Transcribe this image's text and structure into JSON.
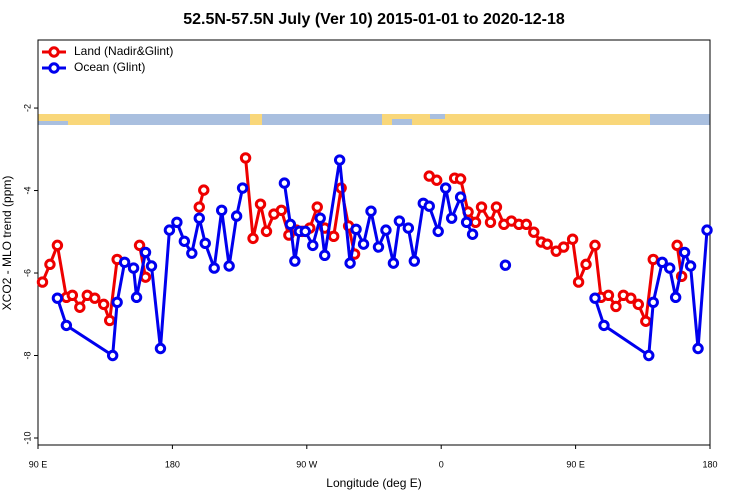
{
  "chart_data": {
    "type": "line",
    "title": "52.5N-57.5N July (Ver 10)   2015-01-01 to 2020-12-18",
    "x_label": "Longitude (deg E)",
    "y_label": "XCO2 - MLO trend (ppm)",
    "xlim": [
      90,
      540
    ],
    "ylim": [
      -10.17,
      -0.35
    ],
    "xticks": [
      {
        "value": 90,
        "label": "90 E"
      },
      {
        "value": 180,
        "label": "180"
      },
      {
        "value": 270,
        "label": "90 W"
      },
      {
        "value": 360,
        "label": "0"
      },
      {
        "value": 450,
        "label": "90 E"
      },
      {
        "value": 540,
        "label": "180"
      }
    ],
    "yticks": [
      -2,
      -4,
      -6,
      -8,
      -10
    ],
    "legend": "top-left",
    "series": [
      {
        "name": "Land (Nadir&Glint)",
        "color": "#ee0000",
        "x": [
          93,
          98,
          103,
          109,
          113,
          118,
          123,
          128,
          134,
          138,
          143,
          null,
          158,
          162,
          null,
          198,
          201,
          null,
          229,
          234,
          239,
          243,
          248,
          253,
          258,
          263,
          267,
          272,
          277,
          282,
          288,
          293,
          298,
          302,
          null,
          352,
          357,
          null,
          369,
          373,
          378,
          383,
          387,
          393,
          397,
          402,
          407,
          412,
          417,
          422,
          427,
          431,
          437,
          442,
          448,
          452,
          457,
          463,
          467,
          472,
          477,
          482,
          487,
          492,
          497,
          502,
          null,
          518,
          521
        ],
        "values": [
          -6.22,
          -5.79,
          -5.33,
          -6.59,
          -6.54,
          -6.83,
          -6.54,
          -6.61,
          -6.76,
          -7.15,
          -5.67,
          null,
          -5.33,
          -6.1,
          null,
          -4.4,
          -3.99,
          null,
          -3.21,
          -5.16,
          -4.33,
          -4.99,
          -4.57,
          -4.48,
          -5.08,
          -4.96,
          -4.99,
          -4.91,
          -4.4,
          -4.91,
          -5.11,
          -3.94,
          -4.86,
          -5.54,
          null,
          -3.65,
          -3.75,
          null,
          -3.7,
          -3.72,
          -4.52,
          -4.77,
          -4.4,
          -4.77,
          -4.4,
          -4.82,
          -4.74,
          -4.82,
          -4.82,
          -5.01,
          -5.25,
          -5.3,
          -5.47,
          -5.37,
          -5.18,
          -6.22,
          -5.79,
          -5.33,
          -6.59,
          -6.54,
          -6.81,
          -6.54,
          -6.61,
          -6.76,
          -7.17,
          -5.67,
          null,
          -5.33,
          -6.08
        ]
      },
      {
        "name": "Ocean (Glint)",
        "color": "#0000ee",
        "x": [
          103,
          109,
          140,
          143,
          148,
          154,
          156,
          162,
          166,
          172,
          178,
          183,
          188,
          193,
          198,
          202,
          208,
          213,
          218,
          223,
          227,
          null,
          255,
          259,
          262,
          265,
          269,
          274,
          279,
          282,
          292,
          299,
          303,
          308,
          313,
          318,
          323,
          328,
          332,
          338,
          342,
          348,
          352,
          358,
          363,
          367,
          373,
          377,
          381,
          null,
          403,
          null,
          463,
          469,
          499,
          502,
          508,
          513,
          517,
          523,
          527,
          532,
          538
        ],
        "values": [
          -6.61,
          -7.27,
          -8.0,
          -6.71,
          -5.74,
          -5.88,
          -6.59,
          -5.5,
          -5.83,
          -7.83,
          -4.96,
          -4.77,
          -5.23,
          -5.52,
          -4.67,
          -5.28,
          -5.88,
          -4.48,
          -5.83,
          -4.62,
          -3.94,
          null,
          -3.82,
          -4.82,
          -5.71,
          -4.99,
          -4.99,
          -5.33,
          -4.67,
          -5.57,
          -3.26,
          -5.76,
          -4.94,
          -5.3,
          -4.5,
          -5.37,
          -4.96,
          -5.76,
          -4.74,
          -4.91,
          -5.71,
          -4.31,
          -4.38,
          -4.99,
          -3.94,
          -4.67,
          -4.16,
          -4.77,
          -5.06,
          null,
          -5.81,
          null,
          -6.61,
          -7.27,
          -8.0,
          -6.71,
          -5.74,
          -5.88,
          -6.59,
          -5.5,
          -5.83,
          -7.83,
          -4.96
        ]
      }
    ]
  }
}
